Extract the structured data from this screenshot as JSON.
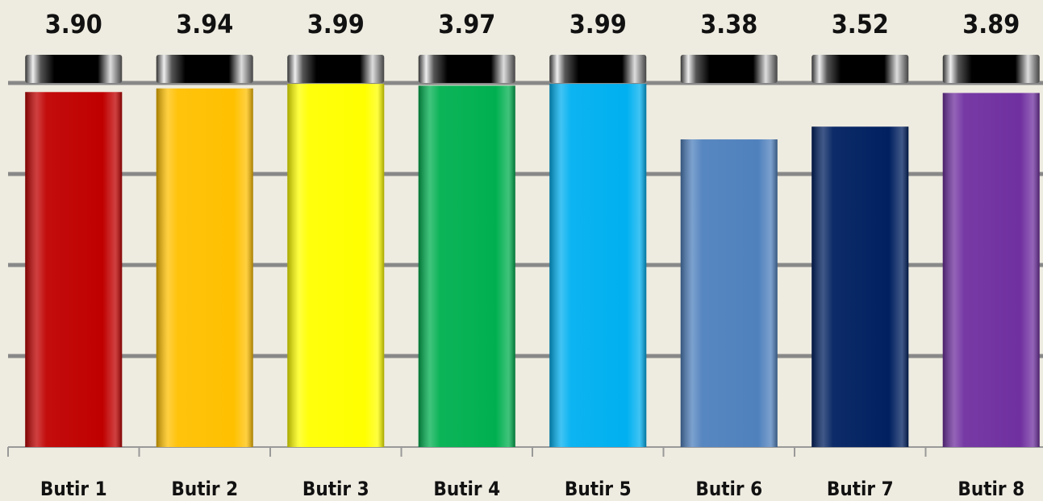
{
  "chart_data": {
    "type": "bar",
    "categories": [
      "Butir 1",
      "Butir 2",
      "Butir 3",
      "Butir 4",
      "Butir 5",
      "Butir 6",
      "Butir 7",
      "Butir 8"
    ],
    "values": [
      3.9,
      3.94,
      3.99,
      3.97,
      3.99,
      3.38,
      3.52,
      3.89
    ],
    "value_labels": [
      "3.90",
      "3.94",
      "3.99",
      "3.97",
      "3.99",
      "3.38",
      "3.52",
      "3.89"
    ],
    "colors": [
      "#c00000",
      "#ffc000",
      "#ffff00",
      "#00b050",
      "#00b0f0",
      "#4f81bd",
      "#002060",
      "#7030a0"
    ],
    "ylim": [
      0,
      4
    ],
    "yticks": [
      0,
      1,
      2,
      3,
      4
    ],
    "grid": true
  }
}
